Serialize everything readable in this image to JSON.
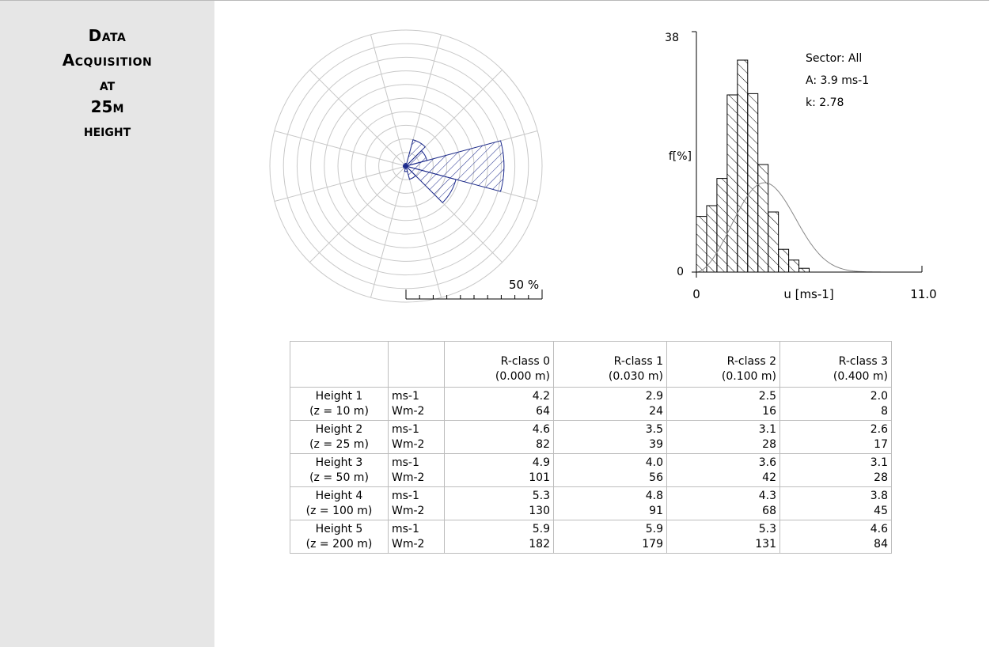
{
  "sidebar": {
    "title_lines": [
      "Data",
      "Acquisition",
      "at",
      "25m",
      "height"
    ]
  },
  "colors": {
    "rose_fill": "#1c2a8c",
    "grid": "#c8c8c8",
    "sidebar_bg": "#e6e6e6"
  },
  "chart_data": [
    {
      "type": "radar",
      "name": "wind-rose",
      "sectors": 12,
      "rings": 10,
      "scale_label": "50 %",
      "scale_max": 50,
      "sector_frequencies": [
        1,
        10,
        8,
        36,
        19,
        5,
        2,
        1,
        1,
        1,
        1,
        1
      ]
    },
    {
      "type": "bar",
      "name": "weibull-histogram",
      "y_max_label": "38",
      "y_min_label": "0",
      "ylabel": "f[%]",
      "x_min_label": "0",
      "x_max_label": "11.0",
      "xlabel": "u [ms-1]",
      "xlim": [
        0,
        11.0
      ],
      "ylim": [
        0,
        38
      ],
      "bin_width": 0.5,
      "values": [
        8.8,
        10.5,
        14.8,
        28.0,
        33.5,
        28.2,
        17.0,
        9.5,
        3.6,
        1.9,
        0.6
      ],
      "annotations": [
        "Sector: All",
        "A: 3.9 ms-1",
        "k: 2.78"
      ],
      "weibull": {
        "A": 3.9,
        "k": 2.78
      }
    }
  ],
  "table": {
    "columns": [
      {
        "line1": "",
        "line2": ""
      },
      {
        "line1": "",
        "line2": ""
      },
      {
        "line1": "R-class 0",
        "line2": "(0.000 m)"
      },
      {
        "line1": "R-class 1",
        "line2": "(0.030 m)"
      },
      {
        "line1": "R-class 2",
        "line2": "(0.100 m)"
      },
      {
        "line1": "R-class 3",
        "line2": "(0.400 m)"
      }
    ],
    "rows": [
      {
        "height": "Height 1",
        "z": "(z = 10 m)",
        "u1": "ms-1",
        "u2": "Wm-2",
        "v": [
          [
            "4.2",
            "64"
          ],
          [
            "2.9",
            "24"
          ],
          [
            "2.5",
            "16"
          ],
          [
            "2.0",
            "8"
          ]
        ]
      },
      {
        "height": "Height 2",
        "z": "(z = 25 m)",
        "u1": "ms-1",
        "u2": "Wm-2",
        "v": [
          [
            "4.6",
            "82"
          ],
          [
            "3.5",
            "39"
          ],
          [
            "3.1",
            "28"
          ],
          [
            "2.6",
            "17"
          ]
        ]
      },
      {
        "height": "Height 3",
        "z": "(z = 50 m)",
        "u1": "ms-1",
        "u2": "Wm-2",
        "v": [
          [
            "4.9",
            "101"
          ],
          [
            "4.0",
            "56"
          ],
          [
            "3.6",
            "42"
          ],
          [
            "3.1",
            "28"
          ]
        ]
      },
      {
        "height": "Height 4",
        "z": "(z = 100 m)",
        "u1": "ms-1",
        "u2": "Wm-2",
        "v": [
          [
            "5.3",
            "130"
          ],
          [
            "4.8",
            "91"
          ],
          [
            "4.3",
            "68"
          ],
          [
            "3.8",
            "45"
          ]
        ]
      },
      {
        "height": "Height 5",
        "z": "(z = 200 m)",
        "u1": "ms-1",
        "u2": "Wm-2",
        "v": [
          [
            "5.9",
            "182"
          ],
          [
            "5.9",
            "179"
          ],
          [
            "5.3",
            "131"
          ],
          [
            "4.6",
            "84"
          ]
        ]
      }
    ]
  }
}
